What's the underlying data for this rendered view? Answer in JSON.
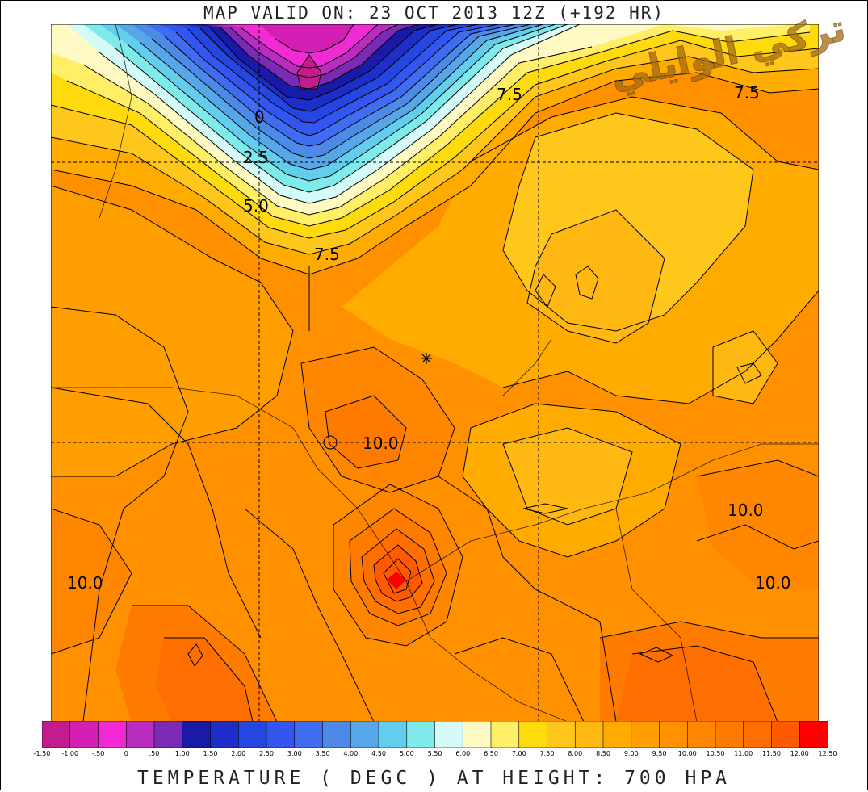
{
  "title": "MAP VALID ON: 23 OCT 2013 12Z (+192 HR)",
  "caption": "TEMPERATURE ( DEGC ) AT HEIGHT: 700  HPA",
  "watermark": "تركي الوايلي",
  "contour_labels": [
    "0",
    "2.5",
    "5.0",
    "7.5",
    "7.5",
    "7.5",
    "10.0",
    "10.0",
    "10.0",
    "10.0"
  ],
  "colorbar": {
    "labels": [
      "-1.50",
      "-1.00",
      "-.50",
      "0",
      ".50",
      "1.00",
      "1.50",
      "2.00",
      "2.50",
      "3.00",
      "3.50",
      "4.00",
      "4.50",
      "5.00",
      "5.50",
      "6.00",
      "6.50",
      "7.00",
      "7.50",
      "8.00",
      "8.50",
      "9.00",
      "9.50",
      "10.00",
      "10.50",
      "11.00",
      "11.50",
      "12.00",
      "12.50"
    ],
    "colors": [
      "#c21c8e",
      "#d41fb4",
      "#f22ad3",
      "#b82dbf",
      "#7b2ab6",
      "#1a1aa8",
      "#1d2fc8",
      "#2546e0",
      "#3356f0",
      "#3f6cf0",
      "#4d8ae8",
      "#57a6e8",
      "#63cdee",
      "#7eeaea",
      "#d4fbf7",
      "#fffac4",
      "#ffee66",
      "#ffda0c",
      "#ffc61c",
      "#ffb712",
      "#ffab00",
      "#ff9e00",
      "#ff9100",
      "#ff8600",
      "#ff7b00",
      "#ff6e00",
      "#ff5a00",
      "#ff0000"
    ]
  }
}
